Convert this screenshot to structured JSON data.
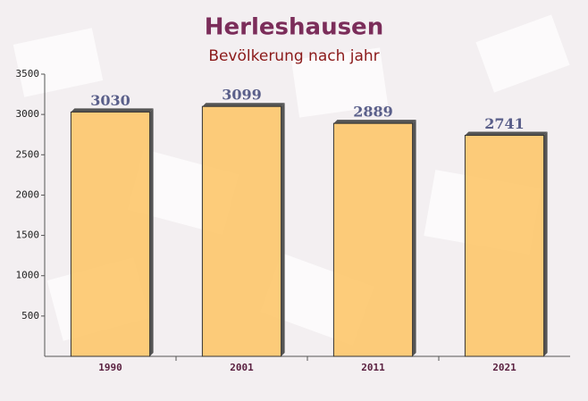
{
  "chart_data": {
    "type": "bar",
    "title": "Herleshausen",
    "subtitle": "Bevölkerung nach jahr",
    "categories": [
      "1990",
      "2001",
      "2011",
      "2021"
    ],
    "values": [
      3030,
      3099,
      2889,
      2741
    ],
    "color": "#fdc76b",
    "ylim": [
      0,
      3500
    ],
    "yticks": [
      500,
      1000,
      1500,
      2000,
      2500,
      3000,
      3500
    ]
  }
}
